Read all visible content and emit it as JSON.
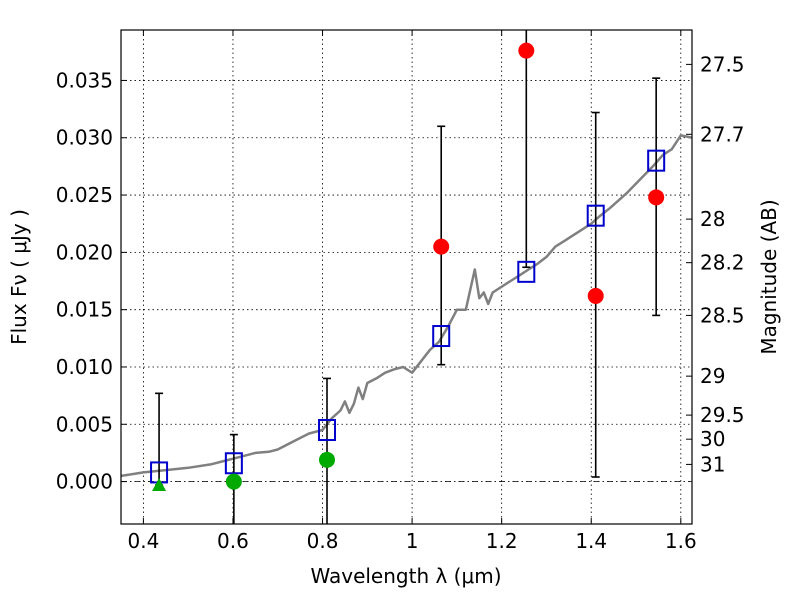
{
  "chart_data": {
    "type": "scatter",
    "xlabel": "Wavelength  λ (μm)",
    "ylabel": "Flux  Fν  ( μJy )",
    "ylabel_right": "Magnitude (AB)",
    "xlim": [
      0.35,
      1.625
    ],
    "ylim": [
      -0.0037,
      0.0394
    ],
    "grid": true,
    "x_ticks": [
      0.4,
      0.6,
      0.8,
      1.0,
      1.2,
      1.4,
      1.6
    ],
    "x_tick_labels": [
      "0.4",
      "0.6",
      "0.8",
      "1",
      "1.2",
      "1.4",
      "1.6"
    ],
    "y_ticks": [
      0.0,
      0.005,
      0.01,
      0.015,
      0.02,
      0.025,
      0.03,
      0.035
    ],
    "y_tick_labels": [
      "0.000",
      "0.005",
      "0.010",
      "0.015",
      "0.020",
      "0.025",
      "0.030",
      "0.035"
    ],
    "right_ticks": [
      {
        "flux": 0.0364,
        "label": "27.5"
      },
      {
        "flux": 0.0303,
        "label": "27.7"
      },
      {
        "flux": 0.0229,
        "label": "28"
      },
      {
        "flux": 0.0191,
        "label": "28.2"
      },
      {
        "flux": 0.0145,
        "label": "28.5"
      },
      {
        "flux": 0.0092,
        "label": "29"
      },
      {
        "flux": 0.0058,
        "label": "29.5"
      },
      {
        "flux": 0.0037,
        "label": "30"
      },
      {
        "flux": 0.0015,
        "label": "31"
      }
    ],
    "series": [
      {
        "kind": "spectrum_line",
        "color": "#808080",
        "x": [
          0.35,
          0.4,
          0.45,
          0.5,
          0.55,
          0.58,
          0.6,
          0.62,
          0.65,
          0.68,
          0.7,
          0.72,
          0.75,
          0.77,
          0.8,
          0.82,
          0.84,
          0.85,
          0.86,
          0.87,
          0.88,
          0.89,
          0.9,
          0.92,
          0.94,
          0.96,
          0.98,
          1.0,
          1.02,
          1.04,
          1.06,
          1.08,
          1.1,
          1.12,
          1.14,
          1.15,
          1.16,
          1.17,
          1.18,
          1.2,
          1.22,
          1.24,
          1.26,
          1.28,
          1.3,
          1.32,
          1.34,
          1.36,
          1.38,
          1.4,
          1.42,
          1.44,
          1.46,
          1.48,
          1.5,
          1.52,
          1.54,
          1.56,
          1.58,
          1.6,
          1.625
        ],
        "y": [
          0.0005,
          0.0008,
          0.001,
          0.0012,
          0.0015,
          0.0018,
          0.002,
          0.0022,
          0.0025,
          0.0026,
          0.0028,
          0.0032,
          0.0038,
          0.0042,
          0.0045,
          0.0055,
          0.0062,
          0.007,
          0.006,
          0.0068,
          0.0082,
          0.0072,
          0.0086,
          0.009,
          0.0095,
          0.0098,
          0.01,
          0.0095,
          0.0105,
          0.0115,
          0.0122,
          0.0135,
          0.015,
          0.015,
          0.0185,
          0.016,
          0.0165,
          0.0155,
          0.0165,
          0.017,
          0.0175,
          0.018,
          0.0185,
          0.019,
          0.0196,
          0.0205,
          0.021,
          0.0215,
          0.022,
          0.0225,
          0.0232,
          0.0238,
          0.0245,
          0.0252,
          0.026,
          0.0268,
          0.0276,
          0.0285,
          0.029,
          0.0302,
          0.03
        ]
      },
      {
        "kind": "model_squares",
        "color": "#0000cc",
        "x": [
          0.435,
          0.602,
          0.81,
          1.065,
          1.255,
          1.41,
          1.545
        ],
        "y": [
          0.0008,
          0.0016,
          0.0045,
          0.0127,
          0.0183,
          0.0232,
          0.028
        ]
      },
      {
        "kind": "red_detections",
        "color": "#ff0000",
        "x": [
          1.065,
          1.255,
          1.41,
          1.545
        ],
        "y": [
          0.0205,
          0.0376,
          0.0162,
          0.0248
        ]
      },
      {
        "kind": "green_detections",
        "color": "#00aa00",
        "x": [
          0.602,
          0.81
        ],
        "y": [
          0.0,
          0.0019
        ]
      },
      {
        "kind": "green_triangle",
        "color": "#00aa00",
        "x": [
          0.435
        ],
        "y": [
          -0.0003
        ]
      }
    ],
    "error_bars": [
      {
        "x": 0.435,
        "low": -0.0003,
        "high": 0.0077
      },
      {
        "x": 0.602,
        "low": -0.0045,
        "high": 0.0041
      },
      {
        "x": 0.81,
        "low": -0.0045,
        "high": 0.009
      },
      {
        "x": 1.065,
        "low": 0.0102,
        "high": 0.031
      },
      {
        "x": 1.255,
        "low": 0.0187,
        "high": 0.04
      },
      {
        "x": 1.41,
        "low": 0.0004,
        "high": 0.0322
      },
      {
        "x": 1.545,
        "low": 0.0145,
        "high": 0.0352
      }
    ]
  }
}
